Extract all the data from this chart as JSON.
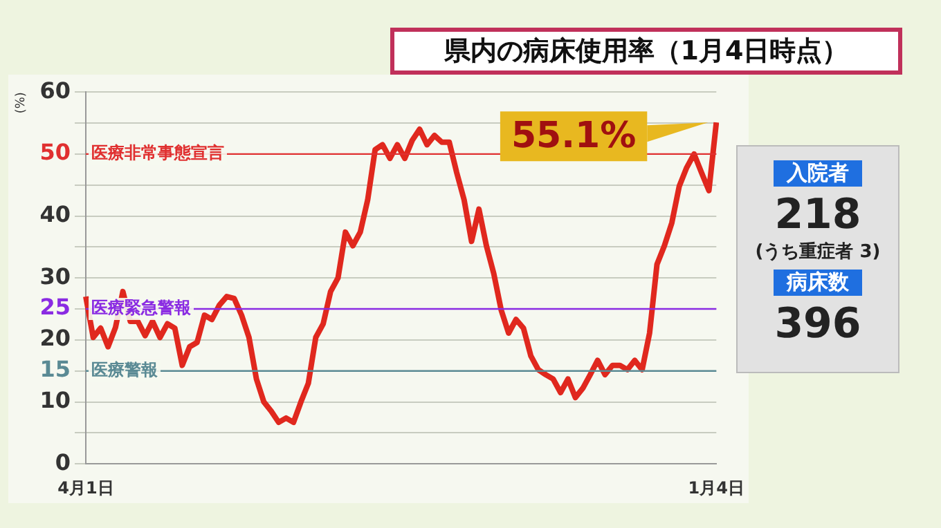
{
  "chart_data": {
    "type": "line",
    "title": "県内の病床使用率（1月4日時点）",
    "ylabel": "(%)",
    "categories": [
      "4月1日",
      null,
      null,
      null,
      null,
      null,
      null,
      null,
      null,
      null,
      null,
      null,
      null,
      null,
      null,
      null,
      null,
      null,
      null,
      null,
      null,
      null,
      null,
      null,
      null,
      null,
      null,
      null,
      null,
      null,
      null,
      null,
      null,
      null,
      null,
      null,
      null,
      null,
      null,
      null,
      null,
      null,
      null,
      null,
      null,
      null,
      null,
      null,
      null,
      null,
      null,
      null,
      null,
      null,
      null,
      null,
      null,
      null,
      null,
      null,
      null,
      null,
      null,
      null,
      null,
      null,
      null,
      null,
      null,
      null,
      null,
      null,
      null,
      null,
      null,
      null,
      null,
      null,
      null,
      null,
      null,
      null,
      null,
      null,
      null,
      "1月4日"
    ],
    "series": [
      {
        "color": "#e0281e",
        "values": [
          27,
          20.4,
          21.9,
          18.9,
          22,
          27.8,
          23,
          23,
          20.7,
          23,
          20.4,
          22.6,
          21.9,
          15.9,
          18.9,
          19.6,
          24,
          23.3,
          25.6,
          27,
          26.7,
          24,
          20.4,
          13.7,
          10,
          8.5,
          6.7,
          7.4,
          6.7,
          10,
          13,
          20.4,
          22.6,
          27.8,
          30,
          37.4,
          35.2,
          37.4,
          42.6,
          50.7,
          51.5,
          49.3,
          51.5,
          49.3,
          52.2,
          54,
          51.5,
          53,
          51.9,
          51.9,
          47,
          42.6,
          35.9,
          41.1,
          35.2,
          30.7,
          24.8,
          21.1,
          23.3,
          21.9,
          17.4,
          15.2,
          14.4,
          13.7,
          11.5,
          13.7,
          10.7,
          12.2,
          14.4,
          16.7,
          14.4,
          15.9,
          15.9,
          15.2,
          16.7,
          15.2,
          21.1,
          32.2,
          35.2,
          38.9,
          44.8,
          47.8,
          50,
          47,
          44.1,
          55.1
        ]
      }
    ],
    "ylim": [
      0,
      60
    ],
    "yticks": [
      0,
      {
        "value": 5,
        "label": null
      },
      10,
      15,
      20,
      25,
      30,
      {
        "value": 35,
        "label": null
      },
      40,
      {
        "value": 45,
        "label": null
      },
      50,
      {
        "value": 55,
        "label": null
      },
      60
    ],
    "grid": "y",
    "legend": false,
    "ref_lines": [
      {
        "axis": "y",
        "value": 50,
        "label": "医療非常事態宣言",
        "color": "#e03030"
      },
      {
        "axis": "y",
        "value": 25,
        "label": "医療緊急警報",
        "color": "#8a2be2"
      },
      {
        "axis": "y",
        "value": 15,
        "label": "医療警報",
        "color": "#5a8a94"
      }
    ],
    "annotations": [
      {
        "text": "55.1%",
        "x": "1月4日",
        "y": 55.1
      },
      "入院者",
      "218",
      "(うち重症者 3)",
      "病床数",
      "396"
    ]
  }
}
